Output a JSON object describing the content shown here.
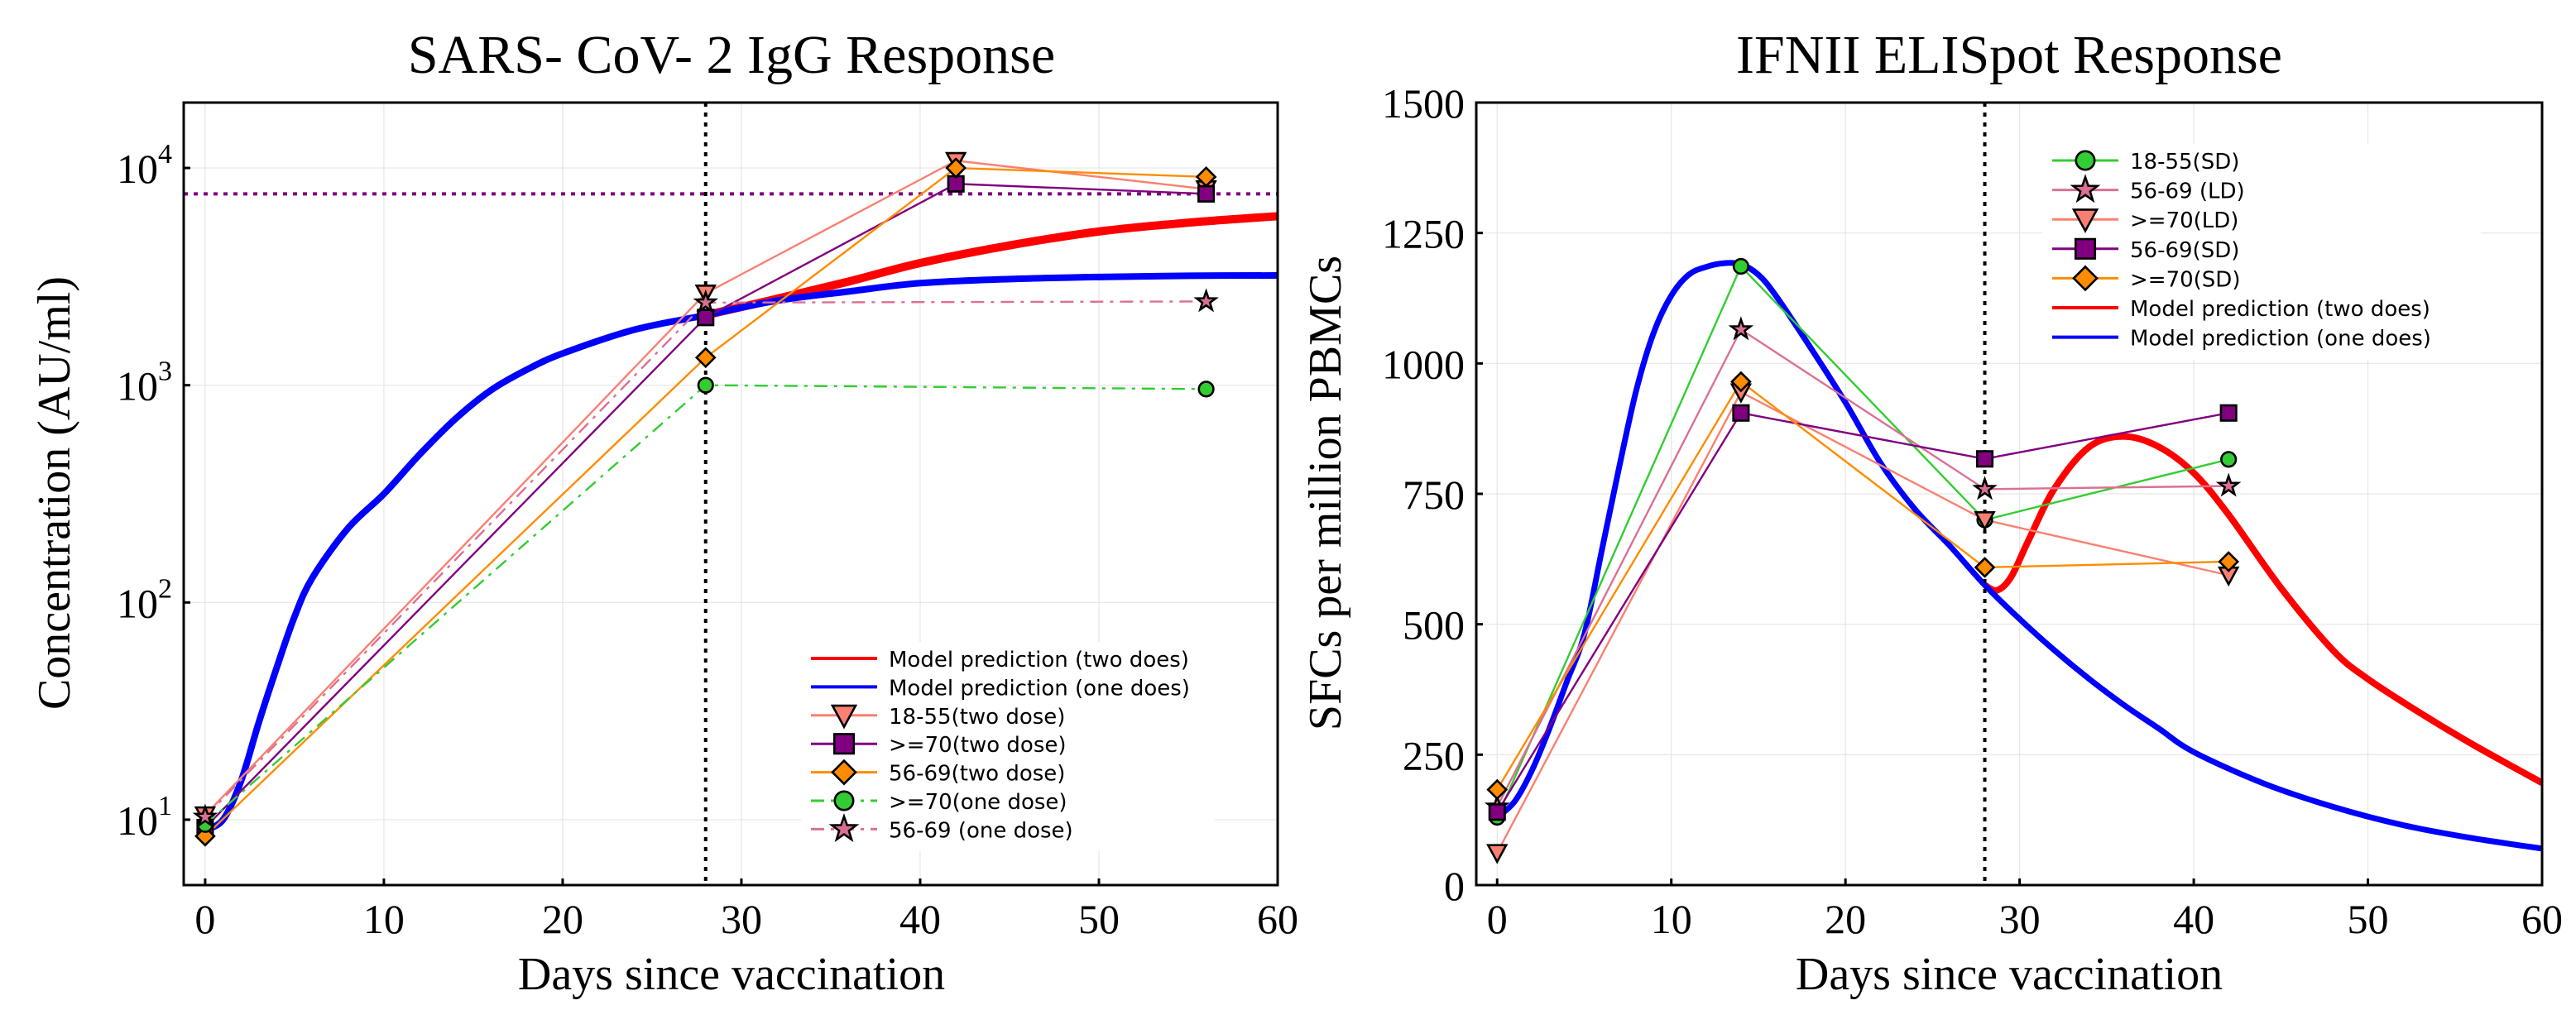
{
  "chart_data": [
    {
      "type": "line",
      "title": "SARS- CoV- 2 IgG Response",
      "xlabel": "Days since vaccination",
      "ylabel": "Concentration (AU/ml)",
      "xlim": [
        -1.2,
        60
      ],
      "ylim": [
        5,
        20000
      ],
      "yscale": "log",
      "xticks": [
        "0",
        "10",
        "20",
        "30",
        "40",
        "50",
        "60"
      ],
      "xtick_values": [
        0,
        10,
        20,
        30,
        40,
        50,
        60
      ],
      "yticks": [
        {
          "base": "10",
          "exp": "1",
          "value": 10
        },
        {
          "base": "10",
          "exp": "2",
          "value": 100
        },
        {
          "base": "10",
          "exp": "3",
          "value": 1000
        },
        {
          "base": "10",
          "exp": "4",
          "value": 10000
        }
      ],
      "grid": true,
      "legend_position": "bottom-right",
      "vline_x": 28,
      "hline_y": 7600,
      "hline_color": "#800080",
      "series": [
        {
          "name": "Model prediction (two does)",
          "color": "#ff0000",
          "kind": "model",
          "marker": "none",
          "x": [
            28,
            32,
            36,
            40,
            45,
            50,
            55,
            60
          ],
          "y": [
            2100,
            2500,
            3000,
            3650,
            4400,
            5100,
            5600,
            6000
          ]
        },
        {
          "name": "Model prediction (one does)",
          "color": "#0000ff",
          "kind": "model",
          "marker": "none",
          "x": [
            0,
            1,
            2,
            3,
            4,
            5,
            6,
            8,
            10,
            12,
            14,
            16,
            18,
            20,
            24,
            28,
            32,
            36,
            40,
            45,
            50,
            55,
            60
          ],
          "y": [
            9,
            10,
            15,
            28,
            50,
            86,
            130,
            220,
            316,
            480,
            700,
            950,
            1180,
            1400,
            1800,
            2100,
            2450,
            2700,
            2950,
            3080,
            3150,
            3190,
            3200
          ]
        },
        {
          "name": "18-55(two dose)",
          "color": "#fa8072",
          "kind": "data",
          "marker": "triangle-down",
          "dash": "solid",
          "x": [
            0,
            28,
            42,
            56
          ],
          "y": [
            10.5,
            2650,
            10800,
            8000
          ]
        },
        {
          "name": ">=70(two dose)",
          "color": "#800080",
          "kind": "data",
          "marker": "square",
          "dash": "solid",
          "x": [
            0,
            28,
            42,
            56
          ],
          "y": [
            9.2,
            2050,
            8450,
            7600
          ]
        },
        {
          "name": "56-69(two dose)",
          "color": "#ff8c00",
          "kind": "data",
          "marker": "diamond",
          "dash": "solid",
          "x": [
            0,
            28,
            42,
            56
          ],
          "y": [
            8.4,
            1340,
            10000,
            9100
          ]
        },
        {
          "name": ">=70(one dose)",
          "color": "#32cd32",
          "kind": "data",
          "marker": "circle",
          "dash": "dashdot",
          "x": [
            0,
            28,
            56
          ],
          "y": [
            9.5,
            1000,
            960
          ]
        },
        {
          "name": "56-69 (one dose)",
          "color": "#db7093",
          "kind": "data",
          "marker": "star",
          "dash": "dashdot",
          "x": [
            0,
            28,
            56
          ],
          "y": [
            10.3,
            2400,
            2430
          ]
        }
      ]
    },
    {
      "type": "line",
      "title": "IFNII ELISpot Response",
      "xlabel": "Days since vaccination",
      "ylabel": "SFCs per million PBMCs",
      "xlim": [
        -1.2,
        60
      ],
      "ylim": [
        0,
        1500
      ],
      "yscale": "linear",
      "xticks": [
        "0",
        "10",
        "20",
        "30",
        "40",
        "50",
        "60"
      ],
      "xtick_values": [
        0,
        10,
        20,
        30,
        40,
        50,
        60
      ],
      "yticks": [
        {
          "label": "0",
          "value": 0
        },
        {
          "label": "250",
          "value": 250
        },
        {
          "label": "500",
          "value": 500
        },
        {
          "label": "750",
          "value": 750
        },
        {
          "label": "1000",
          "value": 1000
        },
        {
          "label": "1250",
          "value": 1250
        },
        {
          "label": "1500",
          "value": 1500
        }
      ],
      "grid": true,
      "legend_position": "top-right",
      "vline_x": 28,
      "series": [
        {
          "name": "18-55(SD)",
          "color": "#32cd32",
          "kind": "data",
          "marker": "circle",
          "dash": "solid",
          "x": [
            0,
            14,
            28,
            42
          ],
          "y": [
            130,
            1186,
            700,
            816
          ]
        },
        {
          "name": "56-69 (LD)",
          "color": "#db7093",
          "kind": "data",
          "marker": "star",
          "dash": "solid",
          "x": [
            0,
            14,
            28,
            42
          ],
          "y": [
            150,
            1065,
            759,
            765
          ]
        },
        {
          "name": ">=70(LD)",
          "color": "#fa8072",
          "kind": "data",
          "marker": "triangle-down",
          "dash": "solid",
          "x": [
            0,
            14,
            28,
            42
          ],
          "y": [
            62,
            945,
            700,
            594
          ]
        },
        {
          "name": "56-69(SD)",
          "color": "#800080",
          "kind": "data",
          "marker": "square",
          "dash": "solid",
          "x": [
            0,
            14,
            28,
            42
          ],
          "y": [
            140,
            905,
            817,
            905
          ]
        },
        {
          "name": ">=70(SD)",
          "color": "#ff8c00",
          "kind": "data",
          "marker": "diamond",
          "dash": "solid",
          "x": [
            0,
            14,
            28,
            42
          ],
          "y": [
            183,
            965,
            609,
            620
          ]
        },
        {
          "name": "Model prediction (two does)",
          "color": "#ff0000",
          "kind": "model",
          "marker": "none",
          "x": [
            28,
            28.7,
            29.5,
            30.5,
            32,
            34,
            36,
            38,
            40,
            42,
            45,
            48,
            50,
            53,
            56,
            60
          ],
          "y": [
            575,
            565,
            590,
            660,
            760,
            840,
            860,
            840,
            790,
            710,
            570,
            450,
            395,
            330,
            270,
            196
          ]
        },
        {
          "name": "Model prediction (one does)",
          "color": "#0000ff",
          "kind": "model",
          "marker": "none",
          "x": [
            0,
            1,
            2,
            3,
            4,
            5,
            6,
            7,
            8,
            9,
            10,
            11,
            12,
            13,
            14,
            15,
            16,
            18,
            20,
            22,
            24,
            26,
            28,
            30,
            32,
            34,
            36,
            38,
            40,
            44,
            48,
            52,
            56,
            60
          ],
          "y": [
            130,
            160,
            220,
            300,
            390,
            480,
            640,
            800,
            950,
            1060,
            1130,
            1170,
            1185,
            1192,
            1190,
            1170,
            1130,
            1030,
            925,
            810,
            720,
            650,
            575,
            510,
            450,
            395,
            345,
            300,
            255,
            195,
            150,
            115,
            90,
            70
          ]
        }
      ]
    }
  ]
}
